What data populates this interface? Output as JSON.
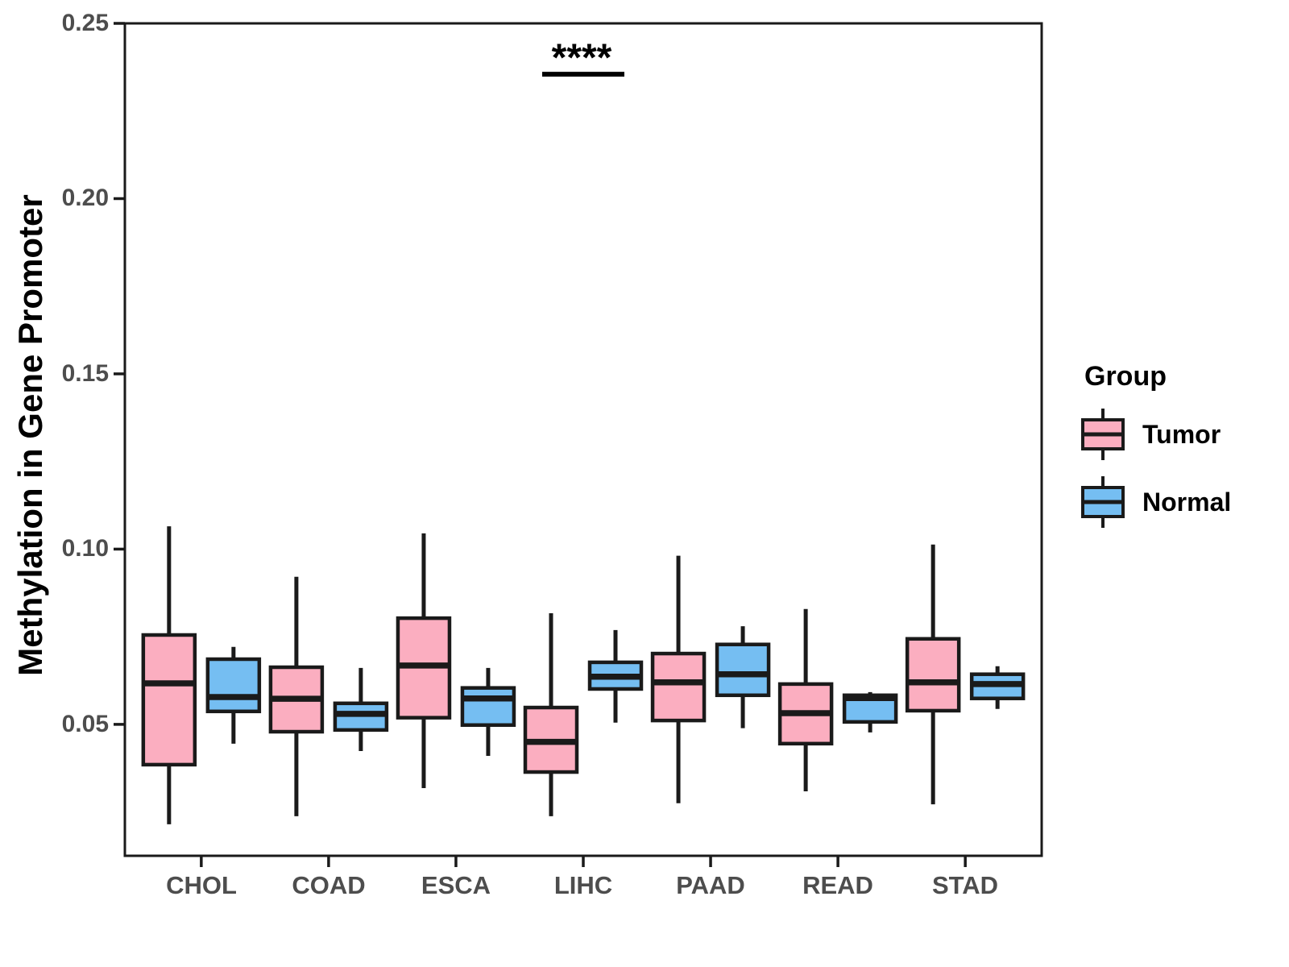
{
  "chart_data": {
    "type": "boxplot",
    "title": "",
    "xlabel": "",
    "ylabel": "Methylation in Gene Promoter",
    "categories": [
      "CHOL",
      "COAD",
      "ESCA",
      "LIHC",
      "PAAD",
      "READ",
      "STAD"
    ],
    "y_tick_labels": [
      "0.25",
      "0.20",
      "0.15",
      "0.10",
      "0.05"
    ],
    "y_tick_values": [
      0.25,
      0.2,
      0.15,
      0.1,
      0.05
    ],
    "ylim": [
      0.0125,
      0.25
    ],
    "grid": false,
    "legend": {
      "title": "Group",
      "position": "right",
      "entries": [
        {
          "label": "Tumor",
          "color": "#FBAEC0"
        },
        {
          "label": "Normal",
          "color": "#75BEF2"
        }
      ]
    },
    "annotation": {
      "text": "****",
      "category": "LIHC",
      "bar_y_value": 0.2355,
      "text_y_value": 0.2405
    },
    "series": [
      {
        "name": "Tumor",
        "color": "#FBAEC0",
        "boxes": [
          {
            "category": "CHOL",
            "whisker_low": 0.0215,
            "q1": 0.0385,
            "median": 0.0617,
            "q3": 0.0755,
            "whisker_high": 0.1065
          },
          {
            "category": "COAD",
            "whisker_low": 0.0238,
            "q1": 0.0479,
            "median": 0.0573,
            "q3": 0.0663,
            "whisker_high": 0.0921
          },
          {
            "category": "ESCA",
            "whisker_low": 0.0318,
            "q1": 0.0519,
            "median": 0.0668,
            "q3": 0.0803,
            "whisker_high": 0.1045
          },
          {
            "category": "LIHC",
            "whisker_low": 0.0238,
            "q1": 0.0364,
            "median": 0.045,
            "q3": 0.0548,
            "whisker_high": 0.0817
          },
          {
            "category": "PAAD",
            "whisker_low": 0.0275,
            "q1": 0.0511,
            "median": 0.062,
            "q3": 0.0702,
            "whisker_high": 0.0981
          },
          {
            "category": "READ",
            "whisker_low": 0.0309,
            "q1": 0.0445,
            "median": 0.0532,
            "q3": 0.0615,
            "whisker_high": 0.0829
          },
          {
            "category": "STAD",
            "whisker_low": 0.0272,
            "q1": 0.0539,
            "median": 0.062,
            "q3": 0.0744,
            "whisker_high": 0.1013
          }
        ]
      },
      {
        "name": "Normal",
        "color": "#75BEF2",
        "boxes": [
          {
            "category": "CHOL",
            "whisker_low": 0.0445,
            "q1": 0.0537,
            "median": 0.0578,
            "q3": 0.0686,
            "whisker_high": 0.0721
          },
          {
            "category": "COAD",
            "whisker_low": 0.0424,
            "q1": 0.0484,
            "median": 0.053,
            "q3": 0.056,
            "whisker_high": 0.0661
          },
          {
            "category": "ESCA",
            "whisker_low": 0.041,
            "q1": 0.0498,
            "median": 0.0574,
            "q3": 0.0604,
            "whisker_high": 0.0661
          },
          {
            "category": "LIHC",
            "whisker_low": 0.0505,
            "q1": 0.0601,
            "median": 0.0636,
            "q3": 0.0677,
            "whisker_high": 0.0769
          },
          {
            "category": "PAAD",
            "whisker_low": 0.0489,
            "q1": 0.0583,
            "median": 0.0643,
            "q3": 0.0728,
            "whisker_high": 0.078
          },
          {
            "category": "READ",
            "whisker_low": 0.0477,
            "q1": 0.0507,
            "median": 0.0575,
            "q3": 0.0583,
            "whisker_high": 0.0592
          },
          {
            "category": "STAD",
            "whisker_low": 0.0544,
            "q1": 0.0574,
            "median": 0.0615,
            "q3": 0.0643,
            "whisker_high": 0.0666
          }
        ]
      }
    ],
    "colors": {
      "box_stroke": "#1A1A1A",
      "panel_border": "#1A1A1A",
      "axis_text": "#4D4D4D",
      "axis_title": "#000000",
      "background": "#FFFFFF"
    }
  }
}
